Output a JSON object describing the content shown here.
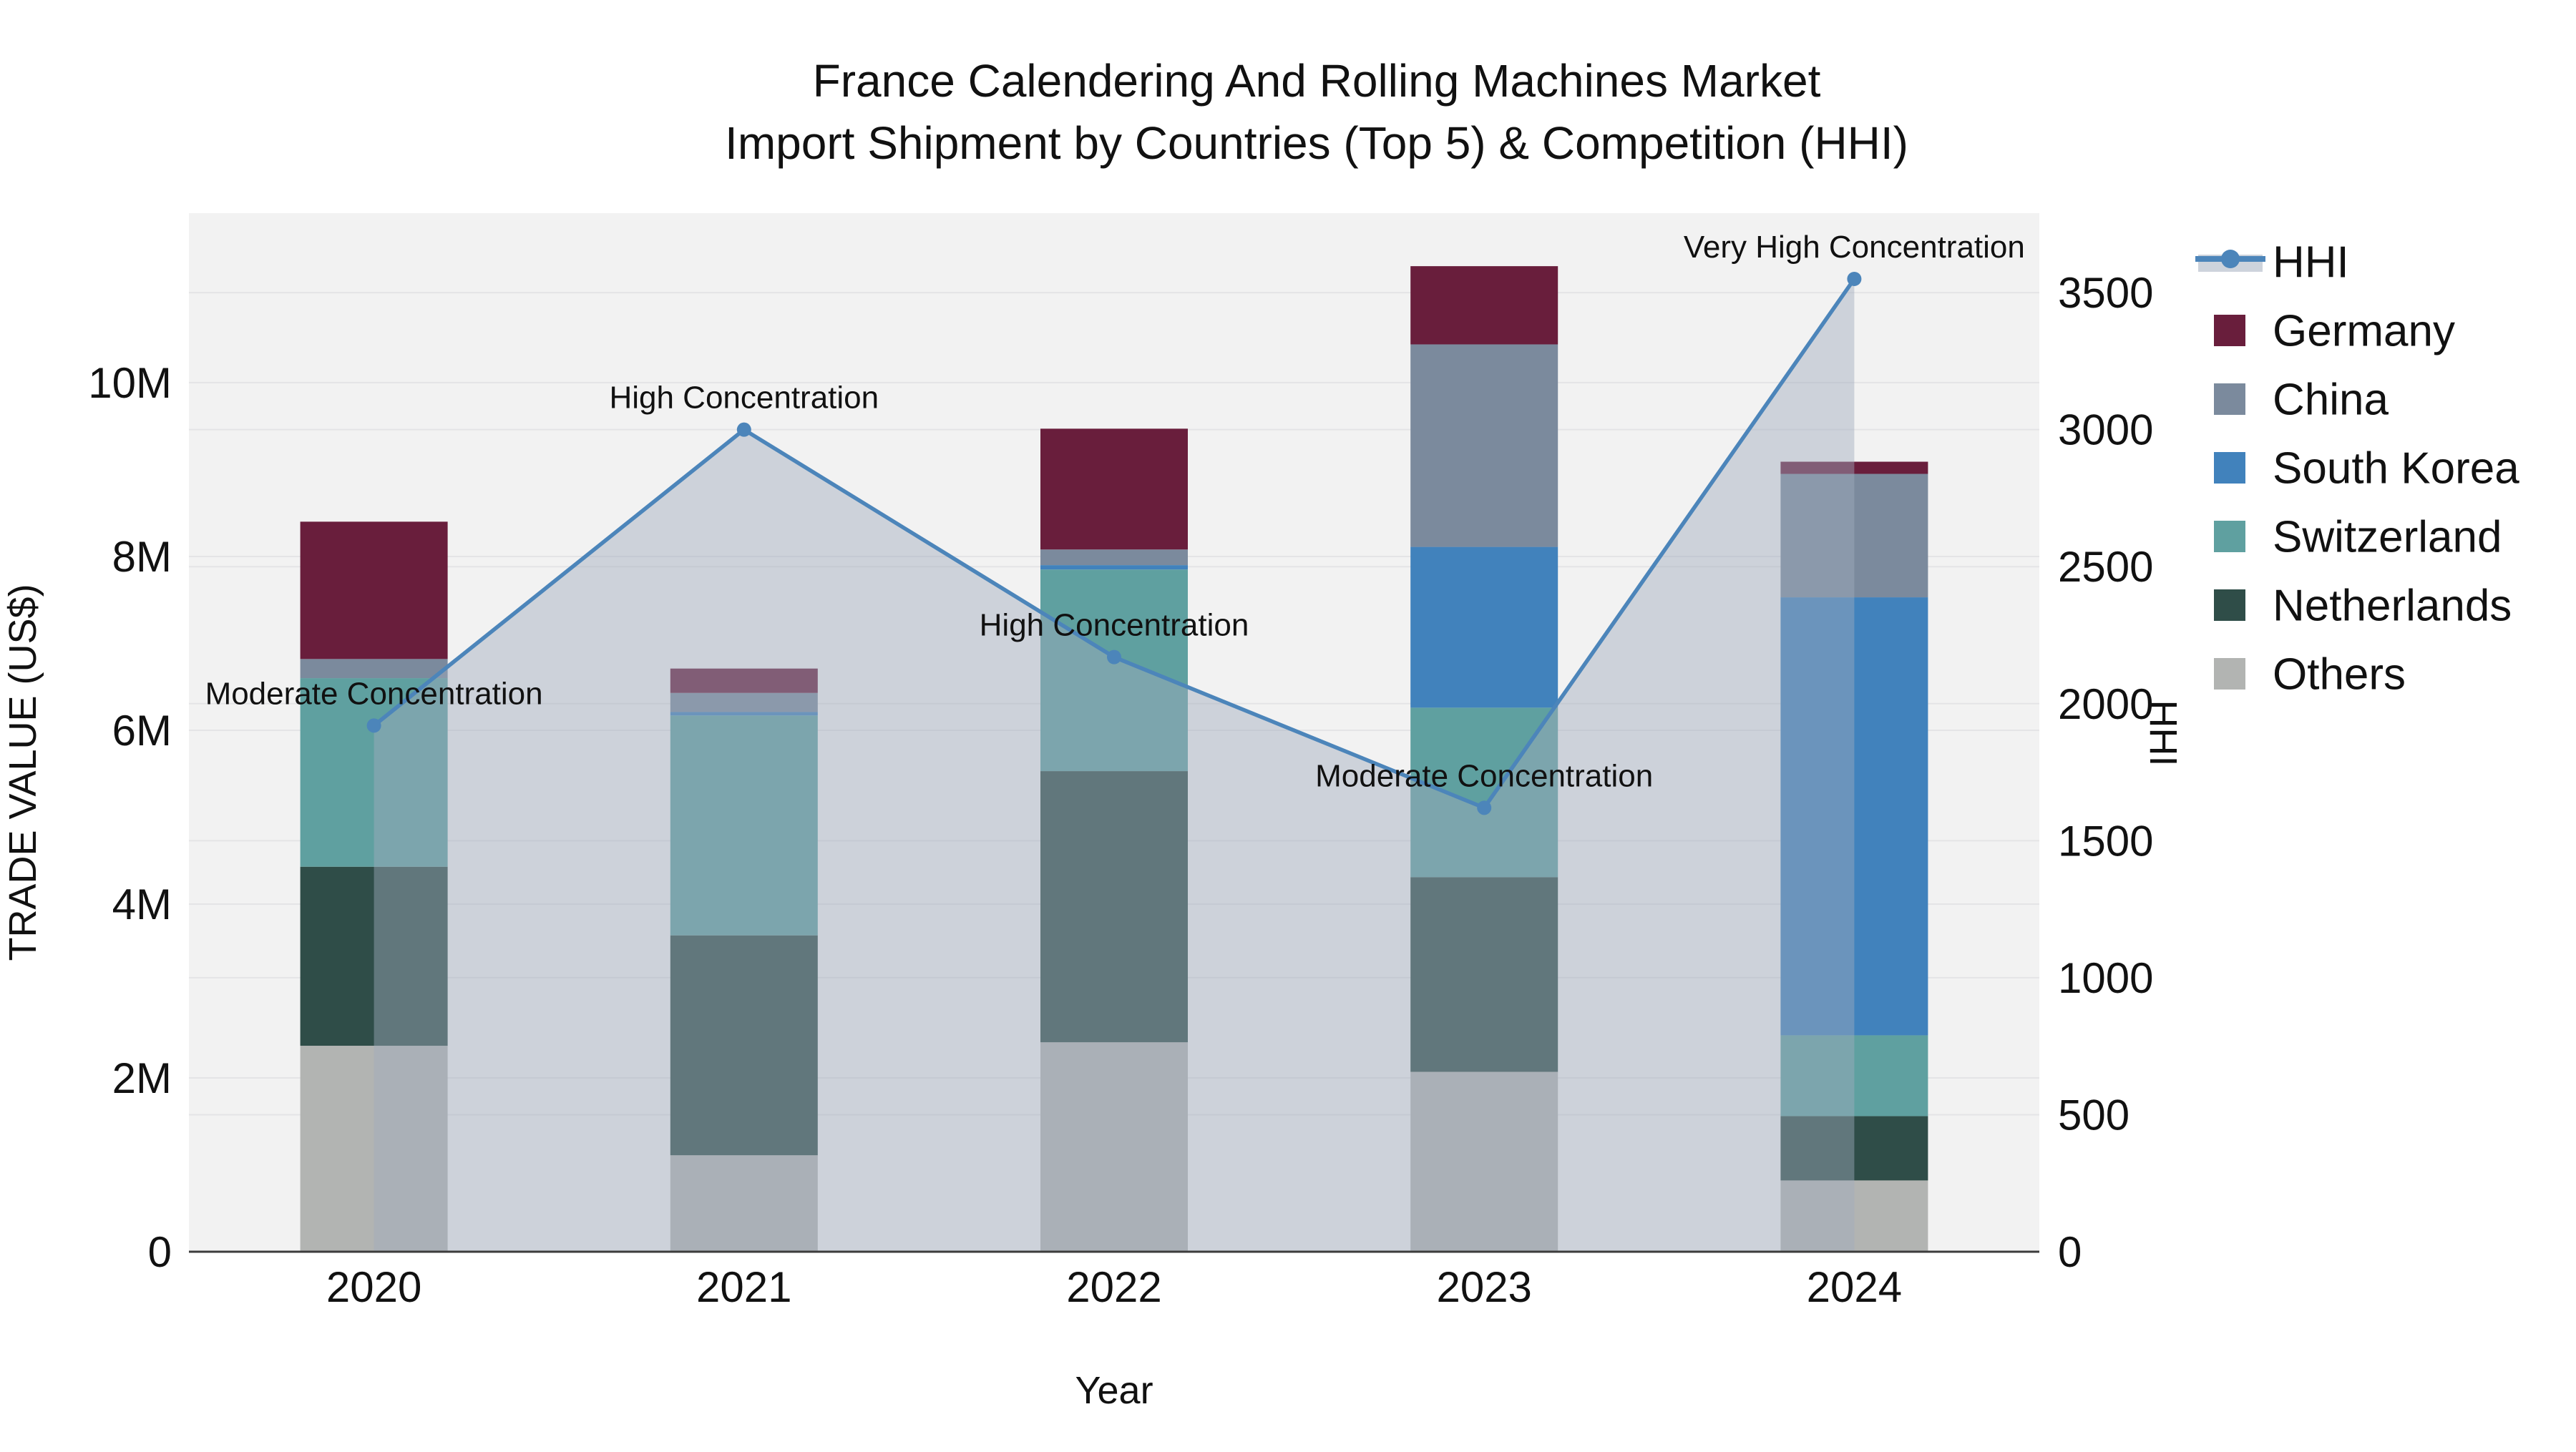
{
  "title": {
    "line1": "France Calendering And Rolling Machines Market",
    "line2": "Import Shipment by Countries (Top 5) & Competition (HHI)"
  },
  "axes": {
    "x_title": "Year",
    "y_left_title": "TRADE VALUE (US$)",
    "y_right_title": "HHI",
    "y_left_ticks": [
      "0",
      "2M",
      "4M",
      "6M",
      "8M",
      "10M"
    ],
    "y_left_tick_values_musd": [
      0,
      2,
      4,
      6,
      8,
      10
    ],
    "y_right_ticks": [
      "0",
      "500",
      "1000",
      "1500",
      "2000",
      "2500",
      "3000",
      "3500"
    ],
    "y_right_tick_values": [
      0,
      500,
      1000,
      1500,
      2000,
      2500,
      3000,
      3500
    ]
  },
  "chart_data": {
    "type": "bar",
    "subtype": "stacked-bars-with-line-dual-axis",
    "categories": [
      "2020",
      "2021",
      "2022",
      "2023",
      "2024"
    ],
    "values_unit": "million US$",
    "stack_order_note": "series listed bottom-to-top of stack",
    "series": [
      {
        "name": "Others",
        "color": "#b2b4b2",
        "values": [
          2.37,
          1.11,
          2.41,
          2.07,
          0.82
        ]
      },
      {
        "name": "Netherlands",
        "color": "#2f4d48",
        "values": [
          2.06,
          2.53,
          3.12,
          2.24,
          0.74
        ]
      },
      {
        "name": "Switzerland",
        "color": "#5fa0a0",
        "values": [
          2.17,
          2.53,
          2.32,
          1.95,
          0.93
        ]
      },
      {
        "name": "South Korea",
        "color": "#4182bc",
        "values": [
          0.0,
          0.04,
          0.05,
          1.85,
          5.04
        ]
      },
      {
        "name": "China",
        "color": "#7b8a9d",
        "values": [
          0.22,
          0.22,
          0.18,
          2.33,
          1.42
        ]
      },
      {
        "name": "Germany",
        "color": "#691e3c",
        "values": [
          1.58,
          0.28,
          1.39,
          0.9,
          0.14
        ]
      }
    ],
    "hhi": {
      "name": "HHI",
      "axis": "right",
      "line_color": "#4c85ba",
      "area_fill_color": "rgba(160,170,188,0.45)",
      "values": [
        1920,
        3000,
        2170,
        1620,
        3550
      ]
    },
    "annotations": [
      "Moderate Concentration",
      "High Concentration",
      "High Concentration",
      "Moderate Concentration",
      "Very High Concentration"
    ],
    "ylim_left_musd": [
      0,
      11.95
    ],
    "ylim_right": [
      0,
      3790
    ],
    "grid": true,
    "legend_position": "right",
    "plot_bg_color": "#f2f2f2",
    "grid_color": "#e4e4e6"
  },
  "legend": {
    "items": [
      {
        "label": "HHI",
        "type": "line",
        "color": "#4c85ba",
        "band_color": "#cdd3dc"
      },
      {
        "label": "Germany",
        "type": "swatch",
        "color": "#691e3c"
      },
      {
        "label": "China",
        "type": "swatch",
        "color": "#7b8a9d"
      },
      {
        "label": "South Korea",
        "type": "swatch",
        "color": "#4182bc"
      },
      {
        "label": "Switzerland",
        "type": "swatch",
        "color": "#5fa0a0"
      },
      {
        "label": "Netherlands",
        "type": "swatch",
        "color": "#2f4d48"
      },
      {
        "label": "Others",
        "type": "swatch",
        "color": "#b2b4b2"
      }
    ]
  }
}
